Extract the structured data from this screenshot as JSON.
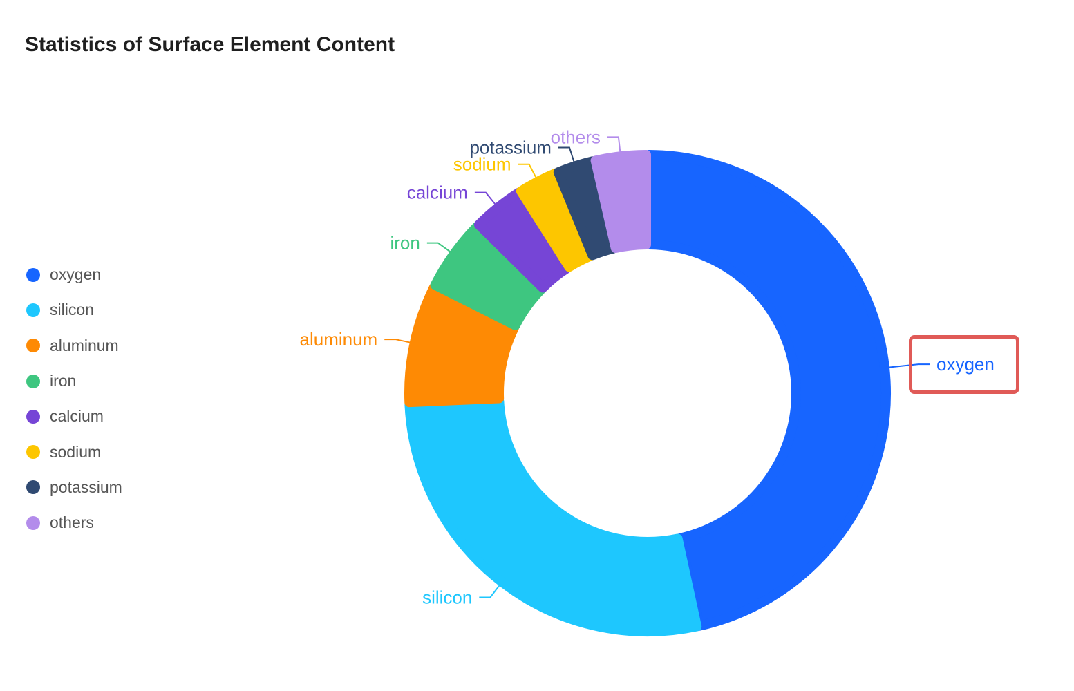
{
  "chart_data": {
    "type": "pie",
    "variant": "donut",
    "title": "Statistics of Surface Element Content",
    "legend_position": "left",
    "slices": [
      {
        "name": "oxygen",
        "value": 46.6,
        "color": "#1765ff"
      },
      {
        "name": "silicon",
        "value": 27.7,
        "color": "#1ec7fe"
      },
      {
        "name": "aluminum",
        "value": 8.1,
        "color": "#fe8a04"
      },
      {
        "name": "iron",
        "value": 5.0,
        "color": "#3ec680"
      },
      {
        "name": "calcium",
        "value": 3.6,
        "color": "#7645d6"
      },
      {
        "name": "sodium",
        "value": 2.8,
        "color": "#fdc600"
      },
      {
        "name": "potassium",
        "value": 2.6,
        "color": "#304a72"
      },
      {
        "name": "others",
        "value": 3.6,
        "color": "#b38ceb"
      }
    ],
    "highlighted": "oxygen"
  }
}
